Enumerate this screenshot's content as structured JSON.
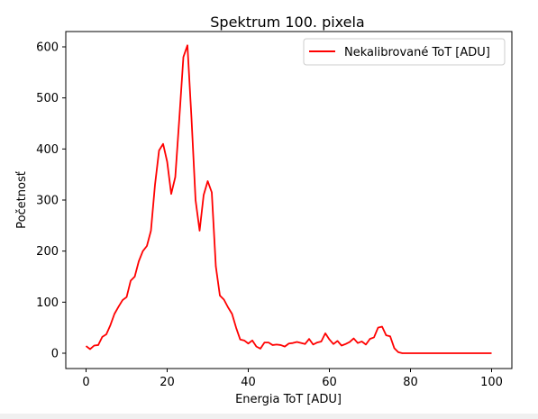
{
  "chart_data": {
    "type": "line",
    "title": "Spektrum 100. pixela",
    "xlabel": "Energia ToT [ADU]",
    "ylabel": "Početnosť",
    "xlim": [
      -5,
      105
    ],
    "ylim": [
      -30,
      630
    ],
    "xticks": [
      0,
      20,
      40,
      60,
      80,
      100
    ],
    "yticks": [
      0,
      100,
      200,
      300,
      400,
      500,
      600
    ],
    "legend_position": "top-right",
    "grid": false,
    "series": [
      {
        "name": "Nekalibrované ToT [ADU]",
        "color": "#ff0000",
        "x": [
          0,
          1,
          2,
          3,
          4,
          5,
          6,
          7,
          8,
          9,
          10,
          11,
          12,
          13,
          14,
          15,
          16,
          17,
          18,
          19,
          20,
          21,
          22,
          23,
          24,
          25,
          26,
          27,
          28,
          29,
          30,
          31,
          32,
          33,
          34,
          35,
          36,
          37,
          38,
          39,
          40,
          41,
          42,
          43,
          44,
          45,
          46,
          47,
          48,
          49,
          50,
          51,
          52,
          53,
          54,
          55,
          56,
          57,
          58,
          59,
          60,
          61,
          62,
          63,
          64,
          65,
          66,
          67,
          68,
          69,
          70,
          71,
          72,
          73,
          74,
          75,
          76,
          77,
          78,
          79,
          80,
          81,
          82,
          83,
          84,
          85,
          86,
          87,
          88,
          89,
          90,
          91,
          92,
          93,
          94,
          95,
          96,
          97,
          98,
          99,
          100
        ],
        "y": [
          14,
          8,
          15,
          16,
          32,
          37,
          55,
          77,
          91,
          104,
          110,
          142,
          150,
          180,
          200,
          210,
          240,
          330,
          397,
          410,
          375,
          312,
          345,
          460,
          580,
          603,
          460,
          300,
          240,
          310,
          337,
          315,
          170,
          113,
          105,
          90,
          77,
          50,
          27,
          25,
          19,
          25,
          13,
          9,
          21,
          21,
          16,
          17,
          16,
          13,
          19,
          20,
          22,
          20,
          18,
          28,
          17,
          21,
          23,
          39,
          27,
          18,
          24,
          15,
          18,
          22,
          29,
          20,
          23,
          17,
          28,
          31,
          50,
          52,
          35,
          33,
          10,
          2,
          0,
          0,
          0,
          0,
          0,
          0,
          0,
          0,
          0,
          0,
          0,
          0,
          0,
          0,
          0,
          0,
          0,
          0,
          0,
          0,
          0,
          0,
          0
        ]
      }
    ]
  }
}
